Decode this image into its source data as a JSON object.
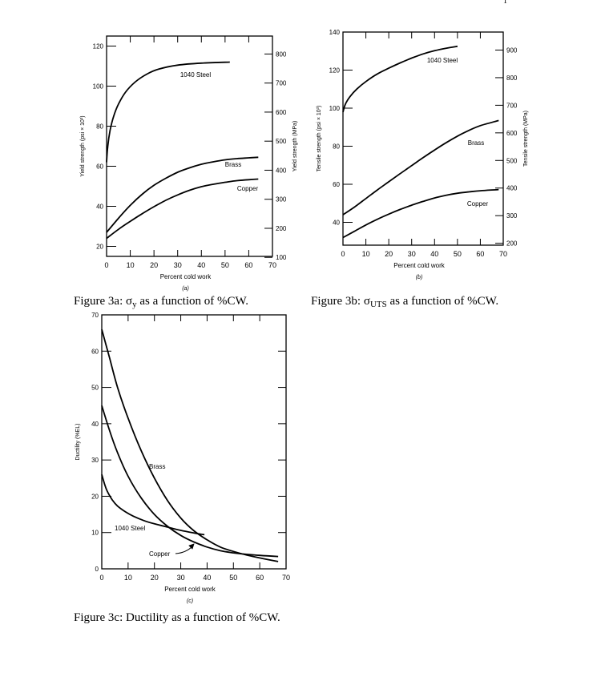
{
  "page_mark": "1",
  "captions": {
    "a_prefix": "Figure 3a: ",
    "a_symbol": "σ",
    "a_sub": "y",
    "a_rest": " as a function of %CW.",
    "b_prefix": "Figure 3b: ",
    "b_symbol": "σ",
    "b_sub": "UTS",
    "b_rest": " as a function of %CW.",
    "c_text": "Figure 3c:  Ductility as a function of %CW."
  },
  "chart_data": [
    {
      "id": "a",
      "type": "line",
      "title": "",
      "panel_label": "(a)",
      "xlabel": "Percent cold work",
      "ylabel": "Yield strength (psi × 10³)",
      "y2label": "Yield strength (MPa)",
      "xlim": [
        0,
        70
      ],
      "ylim": [
        15,
        125
      ],
      "y2lim": [
        103.4,
        861.8
      ],
      "xticks": [
        0,
        10,
        20,
        30,
        40,
        50,
        60,
        70
      ],
      "xtick_labels": [
        "0",
        "10",
        "20",
        "30",
        "40",
        "50",
        "60",
        "70"
      ],
      "yticks": [
        20,
        40,
        60,
        80,
        100,
        120
      ],
      "ytick_labels": [
        "20",
        "40",
        "60",
        "80",
        "100",
        "120"
      ],
      "y2ticks": [
        100,
        200,
        300,
        400,
        500,
        600,
        700,
        800
      ],
      "y2tick_labels": [
        "100",
        "200",
        "300",
        "400",
        "500",
        "600",
        "700",
        "800"
      ],
      "grid": false,
      "series": [
        {
          "name": "1040 Steel",
          "x": [
            0,
            0.5,
            1.5,
            3,
            5,
            8,
            12,
            17,
            22,
            30,
            40,
            52
          ],
          "y": [
            62,
            70,
            78,
            85,
            91,
            97,
            102,
            106,
            108.5,
            110.5,
            111.5,
            112
          ]
        },
        {
          "name": "Brass",
          "x": [
            0,
            5,
            10,
            15,
            20,
            25,
            30,
            35,
            40,
            45,
            50,
            55,
            60,
            64
          ],
          "y": [
            27,
            34,
            40.5,
            46,
            50.5,
            54,
            57,
            59.2,
            61,
            62.2,
            63.2,
            63.8,
            64.2,
            64.5
          ]
        },
        {
          "name": "Copper",
          "x": [
            0,
            5,
            10,
            15,
            20,
            25,
            30,
            35,
            40,
            45,
            50,
            55,
            60,
            64
          ],
          "y": [
            24,
            28.5,
            32.5,
            36.3,
            39.8,
            43,
            45.7,
            48,
            49.8,
            51,
            52,
            52.8,
            53.3,
            53.6
          ]
        }
      ],
      "annotations": [
        "1040 Steel",
        "Brass",
        "Copper"
      ]
    },
    {
      "id": "b",
      "type": "line",
      "title": "",
      "panel_label": "(b)",
      "xlabel": "Percent cold work",
      "ylabel": "Tensile strength (psi × 10³)",
      "y2label": "Tensile strength (MPa)",
      "xlim": [
        0,
        70
      ],
      "ylim": [
        28,
        140
      ],
      "y2lim": [
        193.1,
        965.3
      ],
      "xticks": [
        0,
        10,
        20,
        30,
        40,
        50,
        60,
        70
      ],
      "xtick_labels": [
        "0",
        "10",
        "20",
        "30",
        "40",
        "50",
        "60",
        "70"
      ],
      "yticks": [
        40,
        60,
        80,
        100,
        120,
        140
      ],
      "ytick_labels": [
        "40",
        "60",
        "80",
        "100",
        "120",
        "140"
      ],
      "y2ticks": [
        200,
        300,
        400,
        500,
        600,
        700,
        800,
        900
      ],
      "y2tick_labels": [
        "200",
        "300",
        "400",
        "500",
        "600",
        "700",
        "800",
        "900"
      ],
      "grid": false,
      "series": [
        {
          "name": "1040 Steel",
          "x": [
            0,
            1,
            3,
            6,
            10,
            15,
            20,
            25,
            30,
            35,
            40,
            45,
            50
          ],
          "y": [
            98,
            102,
            106,
            110,
            114,
            118,
            121,
            123.8,
            126.3,
            128.5,
            130.2,
            131.5,
            132.5
          ]
        },
        {
          "name": "Brass",
          "x": [
            0,
            5,
            10,
            15,
            20,
            25,
            30,
            35,
            40,
            45,
            50,
            55,
            60,
            68
          ],
          "y": [
            44,
            48,
            52.5,
            57,
            61.3,
            65.6,
            69.8,
            74,
            78,
            81.8,
            85.3,
            88.3,
            90.8,
            93.5
          ]
        },
        {
          "name": "Copper",
          "x": [
            0,
            5,
            10,
            15,
            20,
            25,
            30,
            35,
            40,
            45,
            50,
            55,
            60,
            68
          ],
          "y": [
            32,
            35.3,
            38.6,
            41.6,
            44.3,
            46.8,
            49,
            51,
            52.8,
            54.2,
            55.3,
            56,
            56.6,
            57.2
          ]
        }
      ],
      "annotations": [
        "1040 Steel",
        "Brass",
        "Copper"
      ]
    },
    {
      "id": "c",
      "type": "line",
      "title": "",
      "panel_label": "(c)",
      "xlabel": "Percent cold work",
      "ylabel": "Ductility (%EL)",
      "xlim": [
        0,
        70
      ],
      "ylim": [
        0,
        70
      ],
      "xticks": [
        0,
        10,
        20,
        30,
        40,
        50,
        60,
        70
      ],
      "xtick_labels": [
        "0",
        "10",
        "20",
        "30",
        "40",
        "50",
        "60",
        "70"
      ],
      "yticks": [
        0,
        10,
        20,
        30,
        40,
        50,
        60,
        70
      ],
      "ytick_labels": [
        "0",
        "10",
        "20",
        "30",
        "40",
        "50",
        "60",
        "70"
      ],
      "grid": false,
      "series": [
        {
          "name": "Brass",
          "x": [
            0,
            3,
            6,
            10,
            15,
            20,
            25,
            30,
            35,
            40,
            45,
            50,
            55,
            60,
            67
          ],
          "y": [
            66,
            58,
            50,
            41.5,
            32.5,
            25,
            18.8,
            14,
            10.5,
            8,
            6,
            4.8,
            3.8,
            3,
            2
          ]
        },
        {
          "name": "Copper",
          "x": [
            0,
            3,
            6,
            10,
            15,
            20,
            25,
            30,
            35,
            40,
            45,
            50,
            55,
            60,
            67
          ],
          "y": [
            45,
            38,
            32,
            25.5,
            19.5,
            15,
            11.7,
            9.2,
            7.4,
            6,
            5,
            4.4,
            4,
            3.7,
            3.4
          ]
        },
        {
          "name": "1040 Steel",
          "x": [
            0,
            1,
            2,
            4,
            6,
            9,
            12,
            16,
            20,
            25,
            30,
            35,
            39
          ],
          "y": [
            26,
            23.5,
            21.5,
            19,
            17.3,
            15.7,
            14.5,
            13.3,
            12.4,
            11.5,
            10.6,
            9.9,
            9.4
          ]
        }
      ],
      "annotations": [
        "Brass",
        "1040 Steel",
        "Copper"
      ]
    }
  ]
}
